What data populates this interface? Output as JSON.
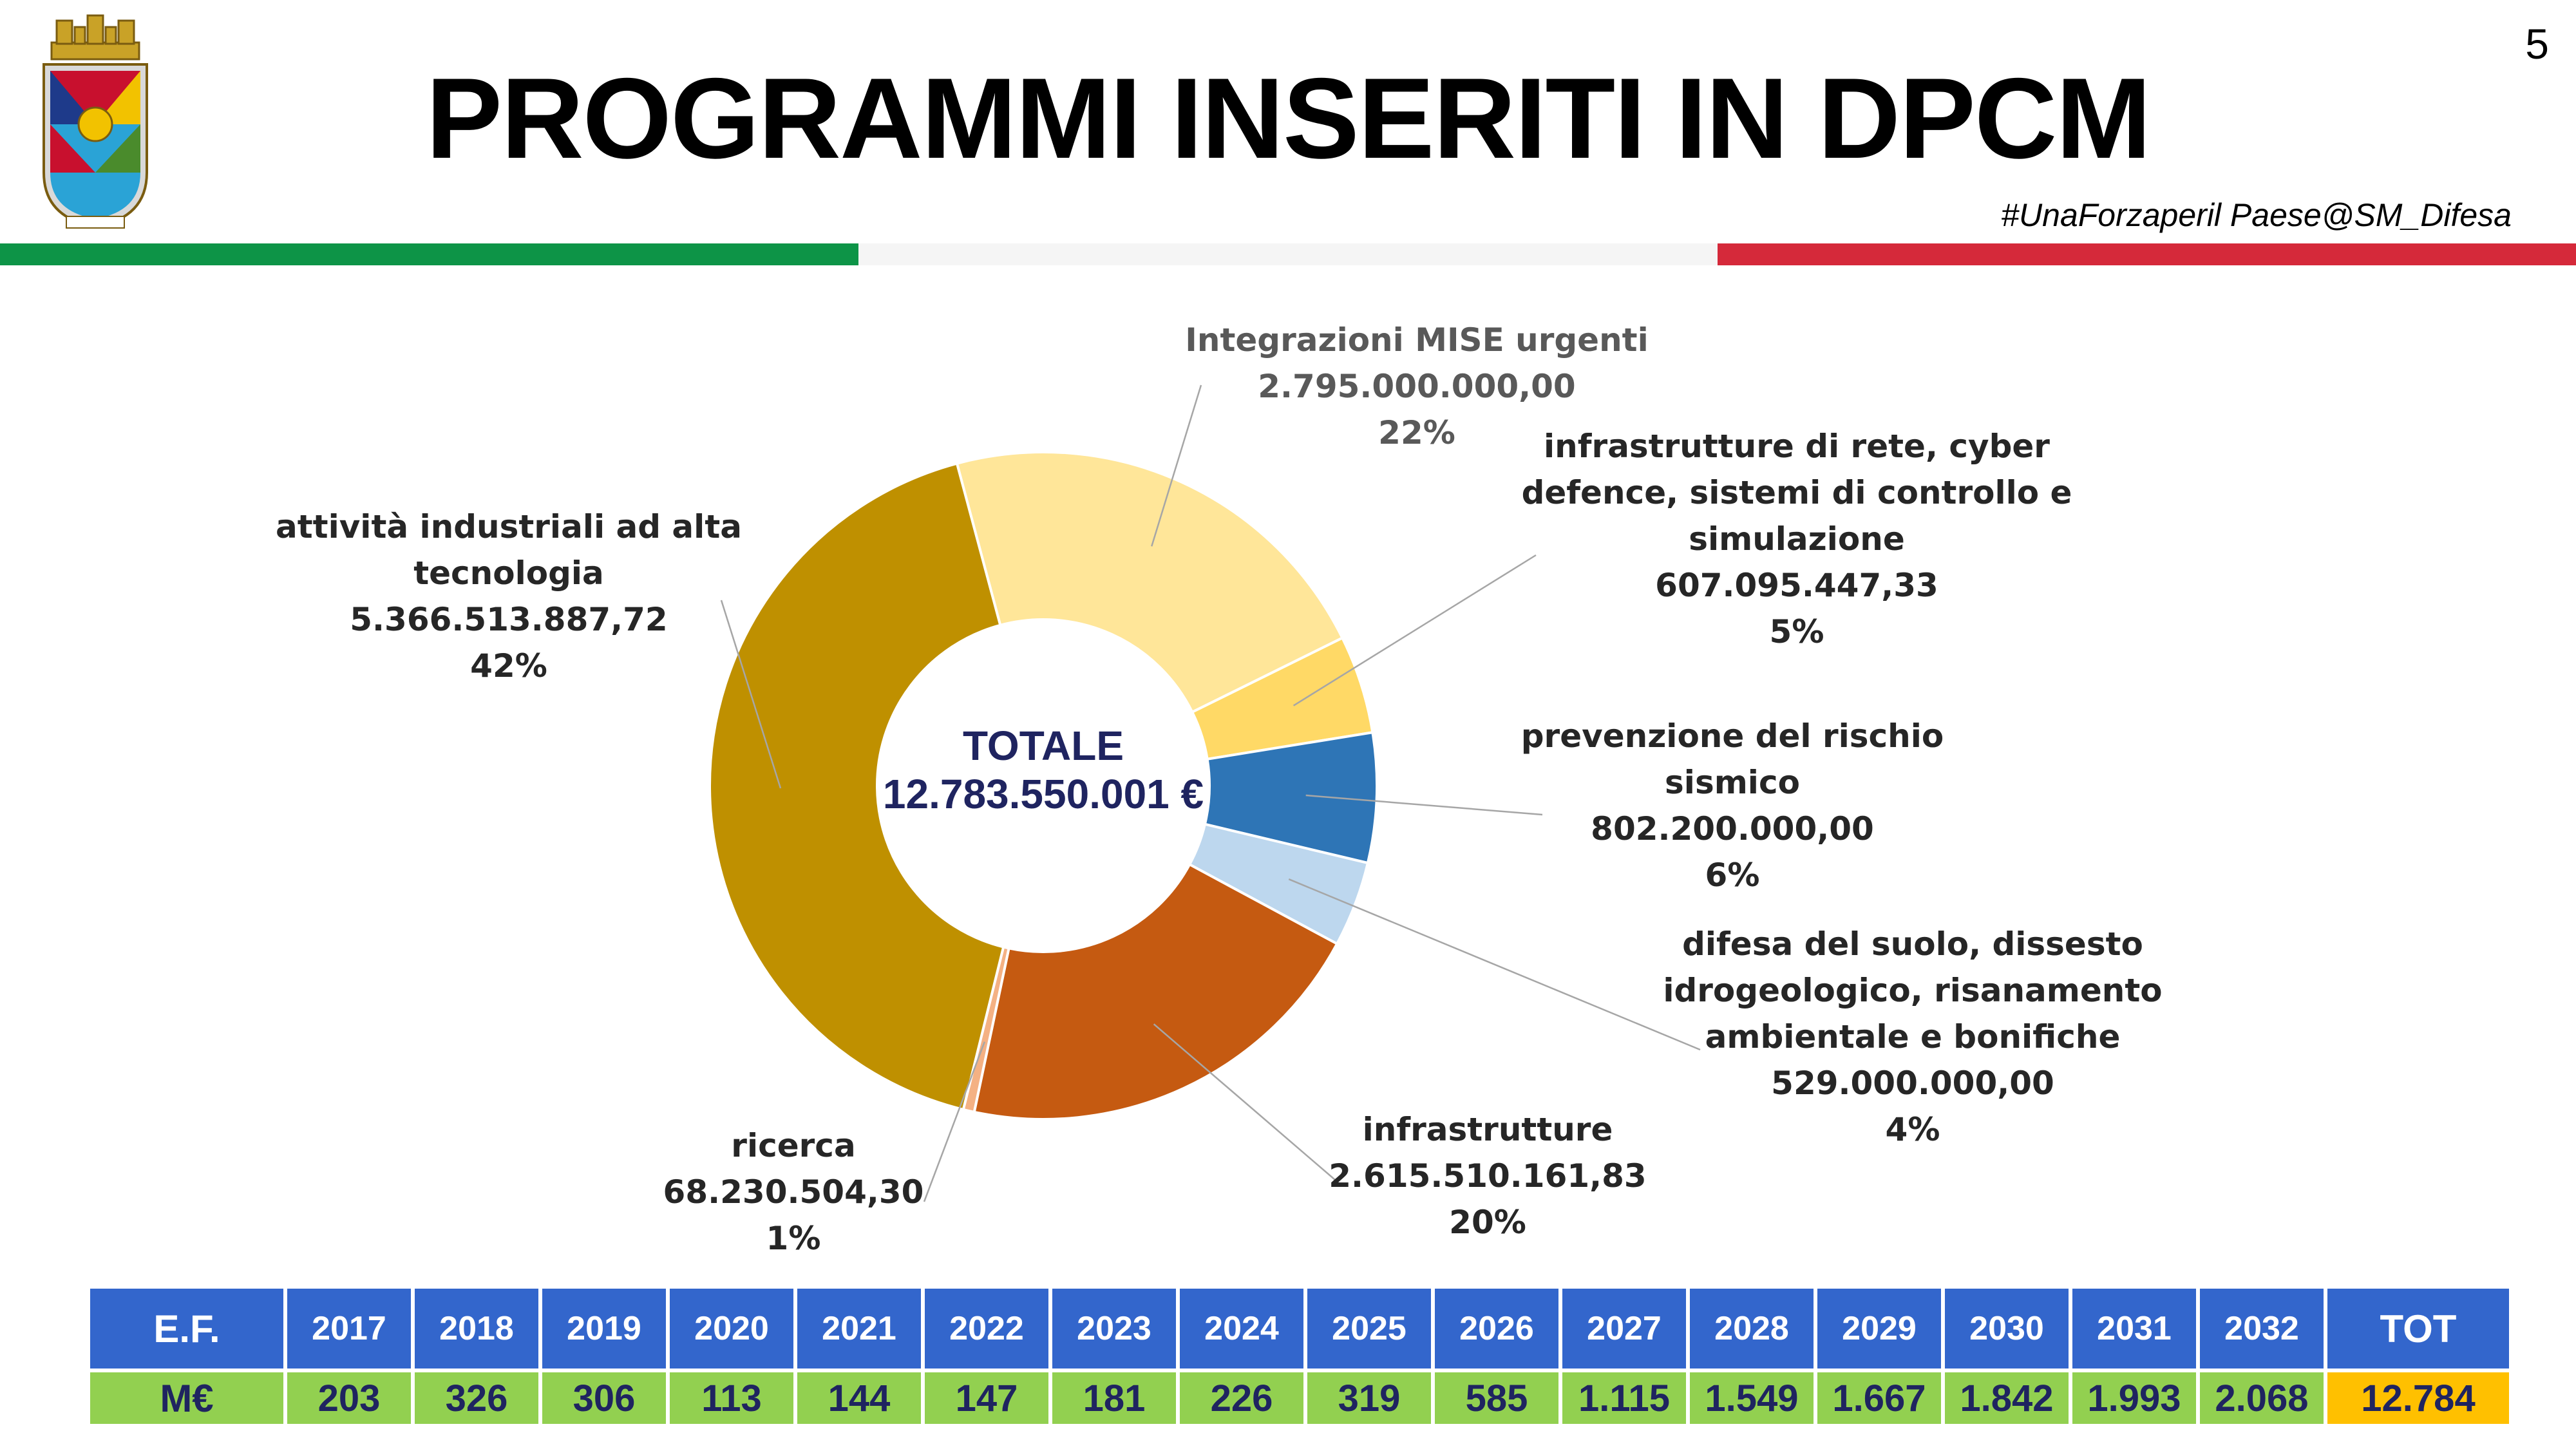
{
  "page": {
    "title": "PROGRAMMI INSERITI IN DPCM",
    "number": "5",
    "hashtag": "#UnaForzaperil Paese@SM_Difesa"
  },
  "colors": {
    "flag_green": "#0d9447",
    "flag_white": "#f5f5f5",
    "flag_red": "#d5293a",
    "table_header": "#3366cc",
    "table_values": "#92d050",
    "table_total": "#ffc000",
    "center_text": "#1f2460"
  },
  "chart_data": {
    "type": "pie",
    "variant": "donut",
    "center_label": {
      "title": "TOTALE",
      "value": "12.783.550.001 €"
    },
    "slices": [
      {
        "label_lines": [
          "Integrazioni MISE urgenti"
        ],
        "value_text": "2.795.000.000,00",
        "percent_text": "22%",
        "value": 2795000000.0,
        "color": "#ffe699"
      },
      {
        "label_lines": [
          "infrastrutture di rete, cyber",
          "defence, sistemi di controllo e",
          "simulazione"
        ],
        "value_text": "607.095.447,33",
        "percent_text": "5%",
        "value": 607095447.33,
        "color": "#ffd966"
      },
      {
        "label_lines": [
          "prevenzione del rischio",
          "sismico"
        ],
        "value_text": "802.200.000,00",
        "percent_text": "6%",
        "value": 802200000.0,
        "color": "#2e75b6"
      },
      {
        "label_lines": [
          "difesa del suolo, dissesto",
          "idrogeologico, risanamento",
          "ambientale e bonifiche"
        ],
        "value_text": "529.000.000,00",
        "percent_text": "4%",
        "value": 529000000.0,
        "color": "#bdd7ee"
      },
      {
        "label_lines": [
          "infrastrutture"
        ],
        "value_text": "2.615.510.161,83",
        "percent_text": "20%",
        "value": 2615510161.83,
        "color": "#c55a11"
      },
      {
        "label_lines": [
          "ricerca"
        ],
        "value_text": "68.230.504,30",
        "percent_text": "1%",
        "value": 68230504.3,
        "color": "#f4b183"
      },
      {
        "label_lines": [
          "attività industriali ad alta",
          "tecnologia"
        ],
        "value_text": "5.366.513.887,72",
        "percent_text": "42%",
        "value": 5366513887.72,
        "color": "#bf9000"
      }
    ]
  },
  "table": {
    "header_label": "E.F.",
    "row_label": "M€",
    "years": [
      "2017",
      "2018",
      "2019",
      "2020",
      "2021",
      "2022",
      "2023",
      "2024",
      "2025",
      "2026",
      "2027",
      "2028",
      "2029",
      "2030",
      "2031",
      "2032"
    ],
    "values": [
      "203",
      "326",
      "306",
      "113",
      "144",
      "147",
      "181",
      "226",
      "319",
      "585",
      "1.115",
      "1.549",
      "1.667",
      "1.842",
      "1.993",
      "2.068"
    ],
    "total_label": "TOT",
    "total_value": "12.784"
  }
}
